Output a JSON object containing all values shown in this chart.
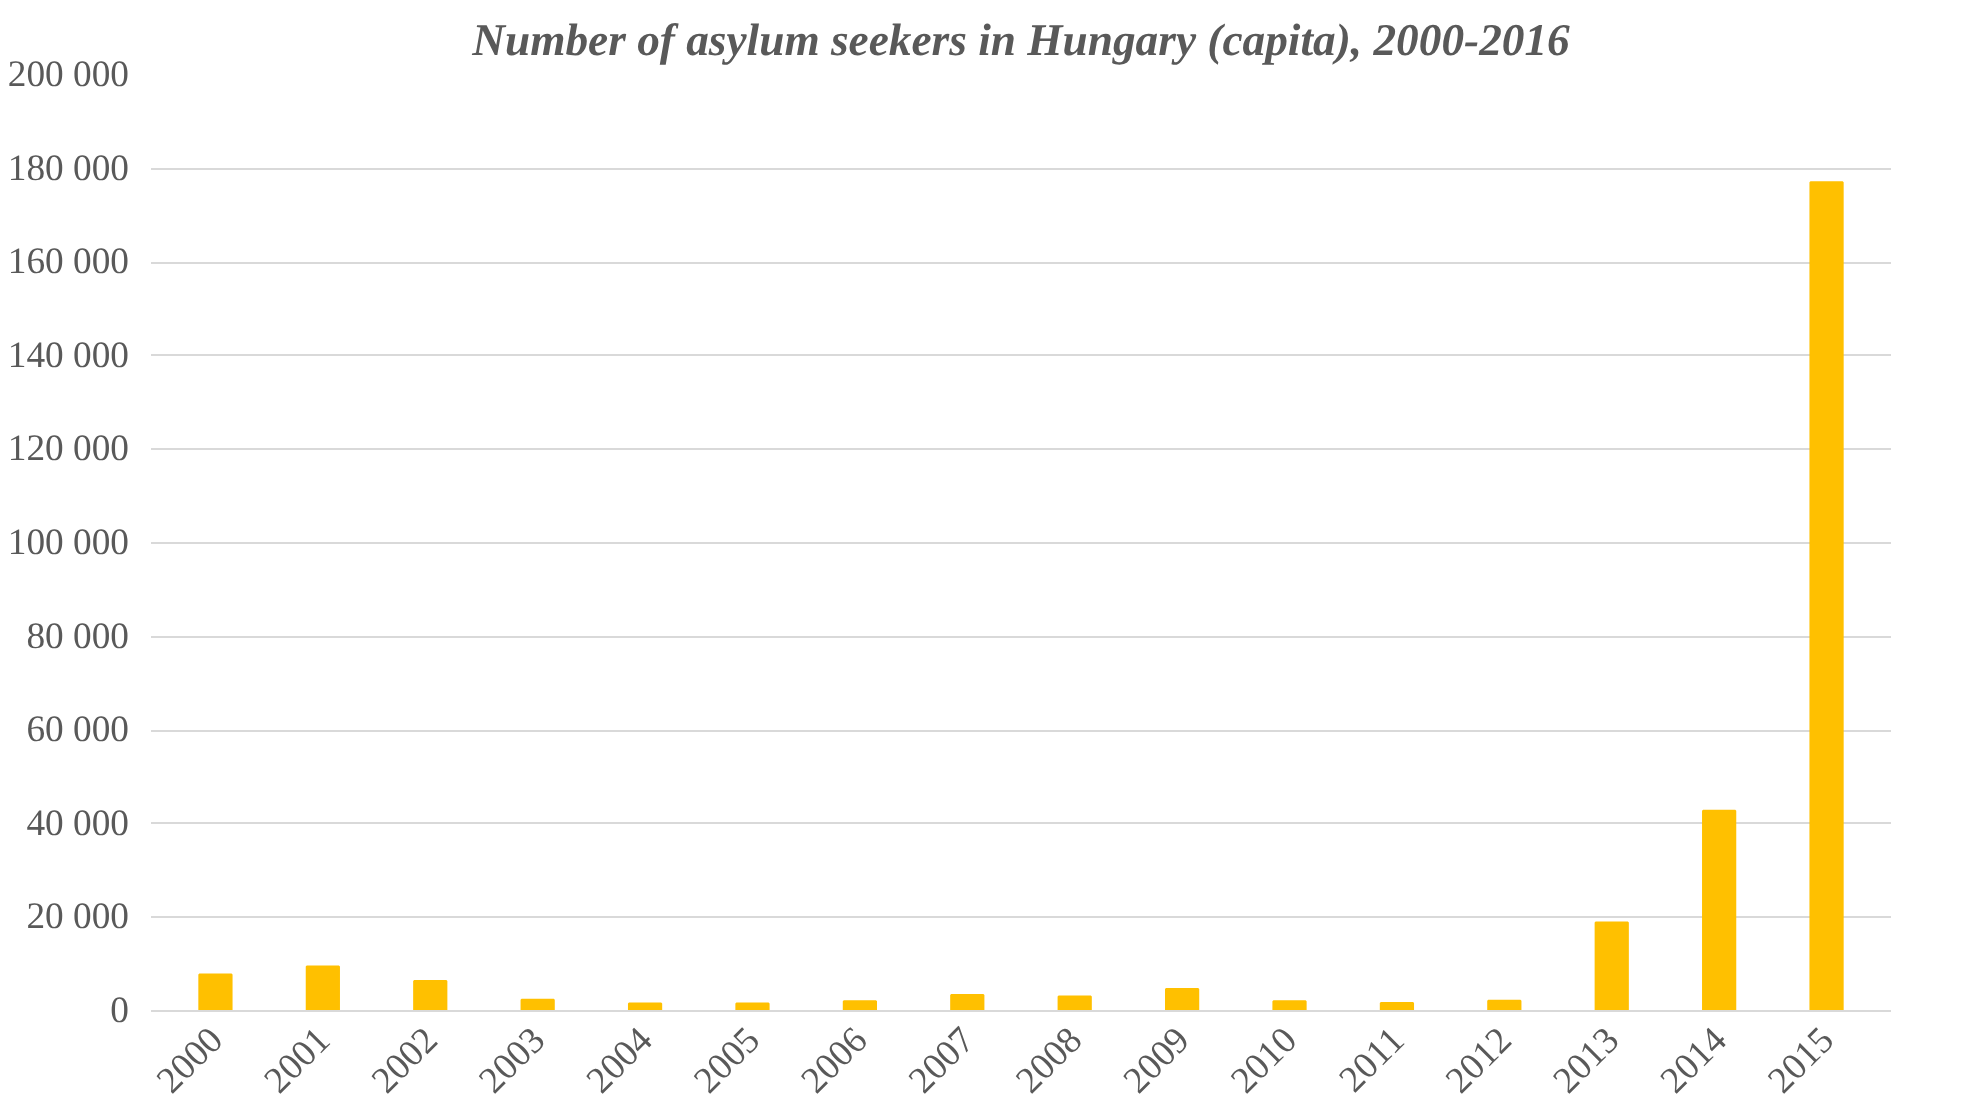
{
  "chart_data": {
    "type": "bar",
    "title": "Number of asylum seekers in Hungary (capita), 2000-2016",
    "categories": [
      "2000",
      "2001",
      "2002",
      "2003",
      "2004",
      "2005",
      "2006",
      "2007",
      "2008",
      "2009",
      "2010",
      "2011",
      "2012",
      "2013",
      "2014",
      "2015"
    ],
    "values": [
      7800,
      9500,
      6400,
      2400,
      1600,
      1600,
      2100,
      3400,
      3100,
      4700,
      2100,
      1700,
      2200,
      18900,
      42800,
      177100
    ],
    "color": "#ffc000",
    "ylim": [
      0,
      200000
    ],
    "yticks": [
      {
        "value": 0,
        "label": "0"
      },
      {
        "value": 20000,
        "label": "20 000"
      },
      {
        "value": 40000,
        "label": "40 000"
      },
      {
        "value": 60000,
        "label": "60 000"
      },
      {
        "value": 80000,
        "label": "80 000"
      },
      {
        "value": 100000,
        "label": "100 000"
      },
      {
        "value": 120000,
        "label": "120 000"
      },
      {
        "value": 140000,
        "label": "140 000"
      },
      {
        "value": 160000,
        "label": "160 000"
      },
      {
        "value": 180000,
        "label": "180 000"
      },
      {
        "value": 200000,
        "label": "200 000"
      }
    ],
    "grid": "y"
  }
}
